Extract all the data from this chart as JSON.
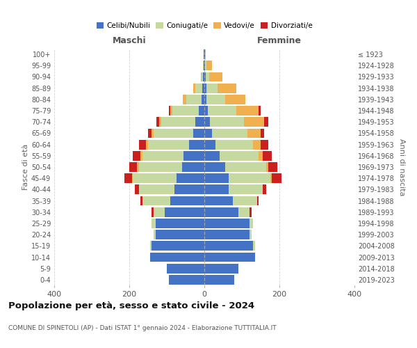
{
  "age_groups": [
    "0-4",
    "5-9",
    "10-14",
    "15-19",
    "20-24",
    "25-29",
    "30-34",
    "35-39",
    "40-44",
    "45-49",
    "50-54",
    "55-59",
    "60-64",
    "65-69",
    "70-74",
    "75-79",
    "80-84",
    "85-89",
    "90-94",
    "95-99",
    "100+"
  ],
  "birth_years": [
    "2019-2023",
    "2014-2018",
    "2009-2013",
    "2004-2008",
    "1999-2003",
    "1994-1998",
    "1989-1993",
    "1984-1988",
    "1979-1983",
    "1974-1978",
    "1969-1973",
    "1964-1968",
    "1959-1963",
    "1954-1958",
    "1949-1953",
    "1944-1948",
    "1939-1943",
    "1934-1938",
    "1929-1933",
    "1924-1928",
    "≤ 1923"
  ],
  "maschi": {
    "celibi": [
      95,
      100,
      145,
      140,
      130,
      130,
      105,
      90,
      80,
      75,
      60,
      55,
      40,
      30,
      25,
      15,
      8,
      5,
      3,
      2,
      2
    ],
    "coniugati": [
      0,
      0,
      0,
      5,
      5,
      10,
      30,
      75,
      95,
      115,
      115,
      110,
      110,
      105,
      90,
      70,
      40,
      20,
      5,
      2,
      0
    ],
    "vedovi": [
      0,
      0,
      0,
      0,
      0,
      0,
      0,
      0,
      0,
      3,
      5,
      5,
      5,
      5,
      5,
      5,
      10,
      5,
      2,
      0,
      0
    ],
    "divorziati": [
      0,
      0,
      0,
      0,
      0,
      0,
      5,
      5,
      10,
      20,
      20,
      20,
      20,
      10,
      8,
      5,
      0,
      0,
      0,
      0,
      0
    ]
  },
  "femmine": {
    "nubili": [
      80,
      90,
      135,
      130,
      120,
      120,
      90,
      75,
      65,
      65,
      55,
      40,
      30,
      20,
      15,
      10,
      5,
      5,
      3,
      2,
      2
    ],
    "coniugate": [
      0,
      0,
      0,
      5,
      5,
      10,
      30,
      65,
      90,
      110,
      110,
      105,
      100,
      95,
      90,
      75,
      50,
      30,
      10,
      3,
      0
    ],
    "vedove": [
      0,
      0,
      0,
      0,
      0,
      0,
      0,
      0,
      0,
      5,
      5,
      10,
      20,
      35,
      55,
      60,
      55,
      50,
      35,
      15,
      2
    ],
    "divorziate": [
      0,
      0,
      0,
      0,
      0,
      0,
      5,
      5,
      10,
      25,
      25,
      25,
      20,
      10,
      10,
      5,
      0,
      0,
      0,
      0,
      0
    ]
  },
  "colors": {
    "celibi": "#4472c4",
    "coniugati": "#c5d9a0",
    "vedovi": "#f0b050",
    "divorziati": "#cc2020"
  },
  "xlim": 400,
  "title": "Popolazione per età, sesso e stato civile - 2024",
  "subtitle": "COMUNE DI SPINETOLI (AP) - Dati ISTAT 1° gennaio 2024 - Elaborazione TUTTITALIA.IT",
  "ylabel_left": "Fasce di età",
  "ylabel_right": "Anni di nascita",
  "xlabel_left": "Maschi",
  "xlabel_right": "Femmine",
  "bg_color": "#ffffff",
  "grid_color": "#cccccc"
}
